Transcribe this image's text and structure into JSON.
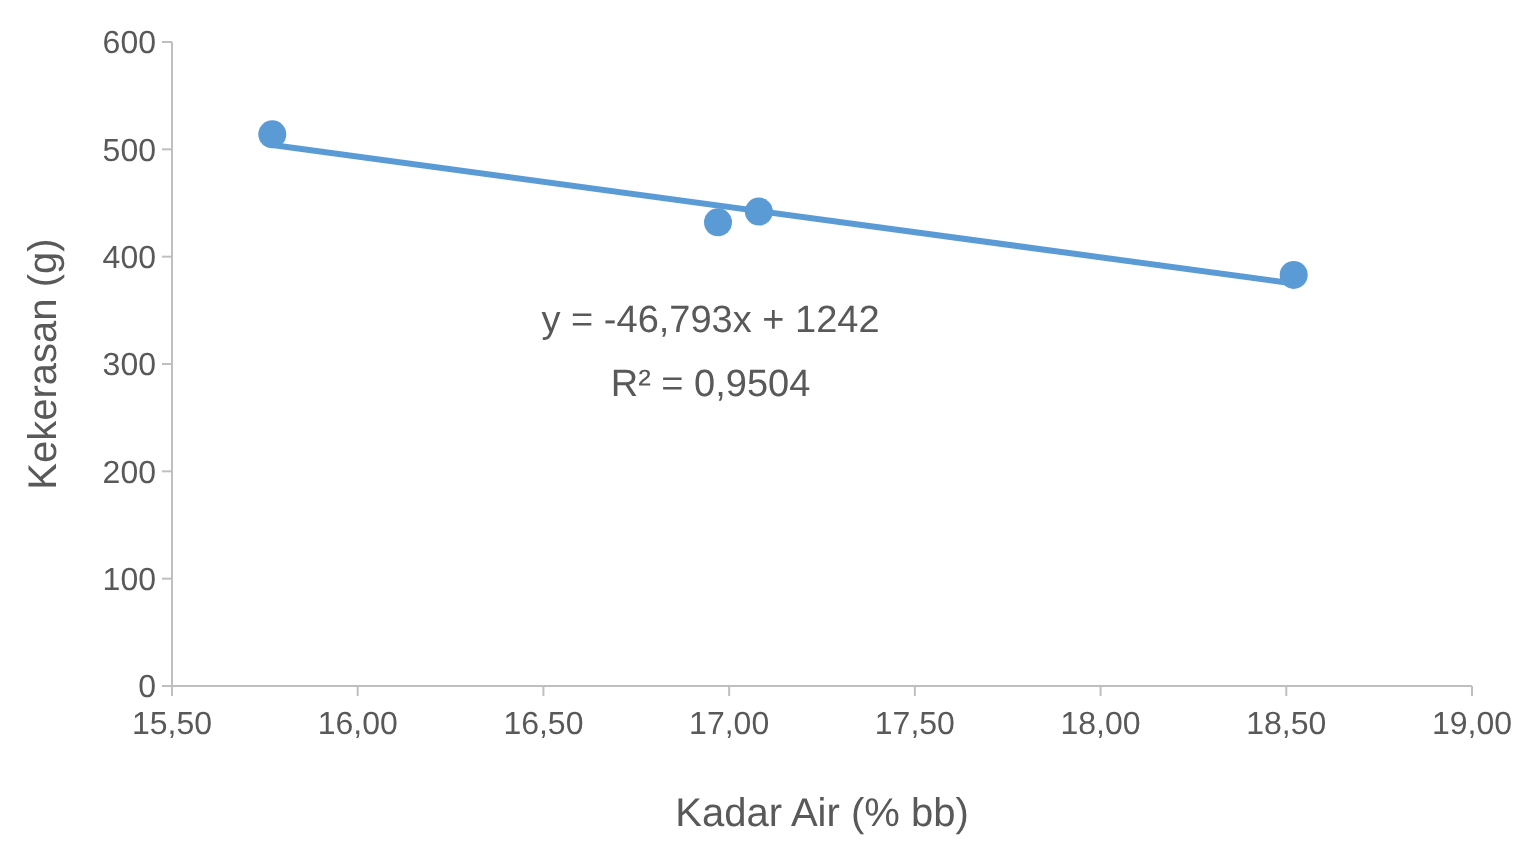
{
  "chart_data": {
    "type": "scatter",
    "xlabel": "Kadar Air (% bb)",
    "ylabel": "Kekerasan (g)",
    "xlim": [
      15.5,
      19
    ],
    "ylim": [
      0,
      600
    ],
    "xticks": [
      {
        "value": 15.5,
        "label": "15,50"
      },
      {
        "value": 16,
        "label": "16,00"
      },
      {
        "value": 16.5,
        "label": "16,50"
      },
      {
        "value": 17,
        "label": "17,00"
      },
      {
        "value": 17.5,
        "label": "17,50"
      },
      {
        "value": 18,
        "label": "18,00"
      },
      {
        "value": 18.5,
        "label": "18,50"
      },
      {
        "value": 19,
        "label": "19,00"
      }
    ],
    "yticks": [
      0,
      100,
      200,
      300,
      400,
      500,
      600
    ],
    "grid": false,
    "annotations": [
      "y = -46,793x + 1242",
      "R² = 0,9504"
    ],
    "series": [
      {
        "marker": "circle",
        "color": "#5b9bd5",
        "x": [
          15.77,
          16.97,
          17.08,
          18.52
        ],
        "values": [
          514,
          432,
          442,
          383
        ]
      },
      {
        "type": "line",
        "marker": "none",
        "color": "#5b9bd5",
        "line_style": "solid",
        "x": [
          15.77,
          18.52
        ],
        "values": [
          504,
          375
        ]
      }
    ]
  }
}
